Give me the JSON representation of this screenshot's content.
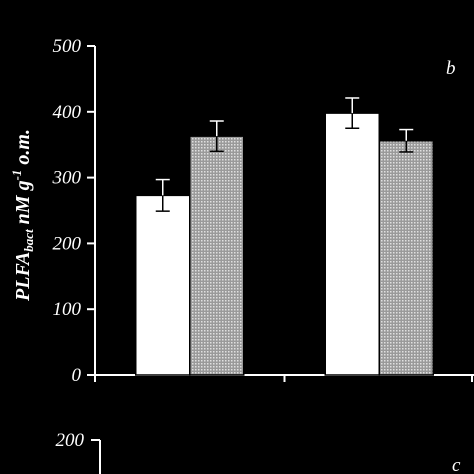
{
  "chart_data": [
    {
      "panel": "b",
      "type": "bar",
      "ylim": [
        0,
        500
      ],
      "yticks": [
        "0",
        "100",
        "200",
        "300",
        "400",
        "500"
      ],
      "ylabel": {
        "main": "PLFA",
        "sub": "bact",
        "unit": " nM  g",
        "sup": "-1",
        "tail": " o.m."
      },
      "groups": 2,
      "series": [
        {
          "fill": "#ffffff",
          "values": [
            273,
            398
          ],
          "errors": [
            24,
            23
          ]
        },
        {
          "fill": "#b3b3b3",
          "values": [
            363,
            356
          ],
          "errors": [
            23,
            17
          ]
        }
      ],
      "grid": false
    },
    {
      "panel": "c",
      "type": "bar",
      "yticks_visible": [
        "200"
      ],
      "partial": true
    }
  ]
}
